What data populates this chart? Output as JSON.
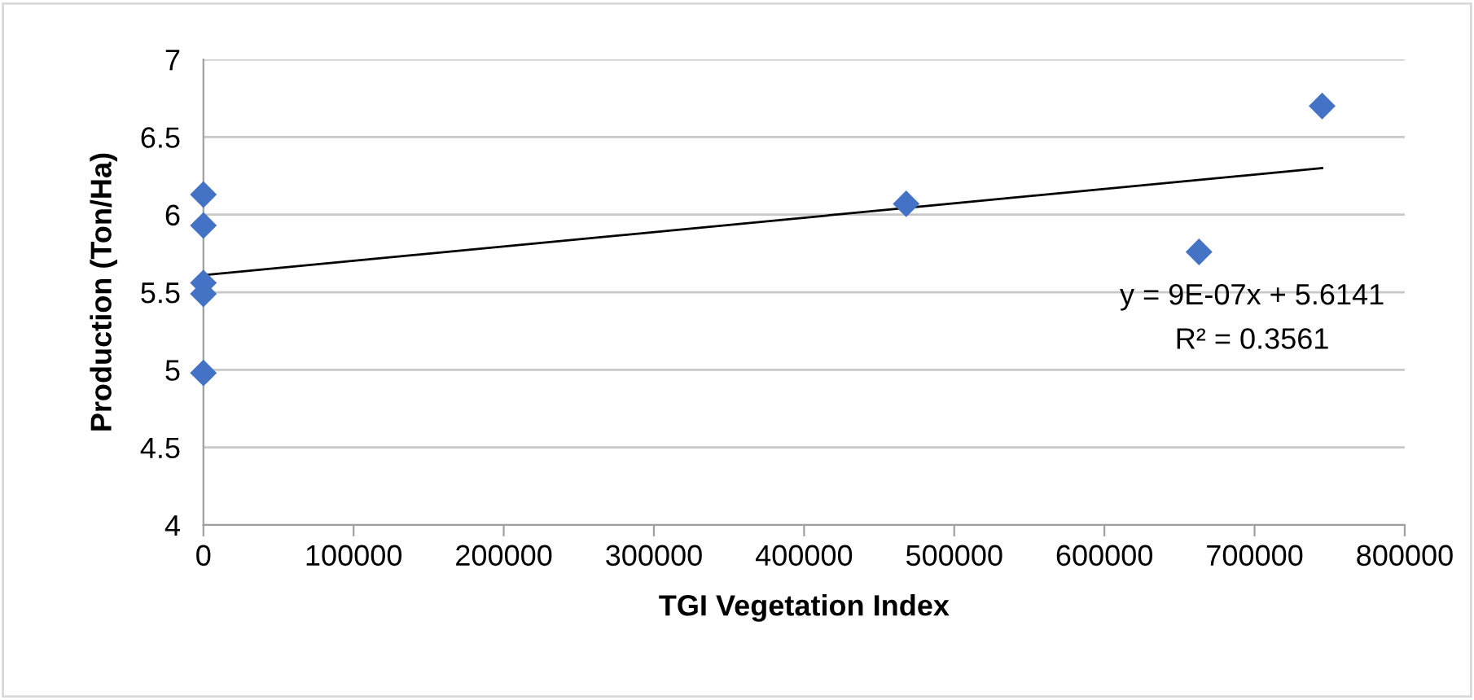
{
  "chart_data": {
    "type": "scatter",
    "xlabel": "TGI Vegetation Index",
    "ylabel": "Production (Ton/Ha)",
    "series": [
      {
        "color": "#4472c4",
        "marker": "diamond",
        "x": [
          0,
          0,
          0,
          0,
          0,
          468000,
          663000,
          745000
        ],
        "values": [
          6.13,
          5.93,
          5.56,
          5.49,
          4.98,
          6.07,
          5.76,
          6.7
        ]
      },
      {
        "type": "line",
        "color": "#000000",
        "marker": "none",
        "x": [
          0,
          745000
        ],
        "values": [
          5.61,
          6.3
        ]
      }
    ],
    "annotations": [
      "y = 9E-07x + 5.6141",
      "R² = 0.3561"
    ],
    "xlim": [
      0,
      800000
    ],
    "xticks": [
      0,
      100000,
      200000,
      300000,
      400000,
      500000,
      600000,
      700000,
      800000
    ],
    "ylim": [
      4,
      7
    ],
    "yticks": [
      4,
      4.5,
      5,
      5.5,
      6,
      6.5,
      7
    ],
    "grid": "y"
  }
}
